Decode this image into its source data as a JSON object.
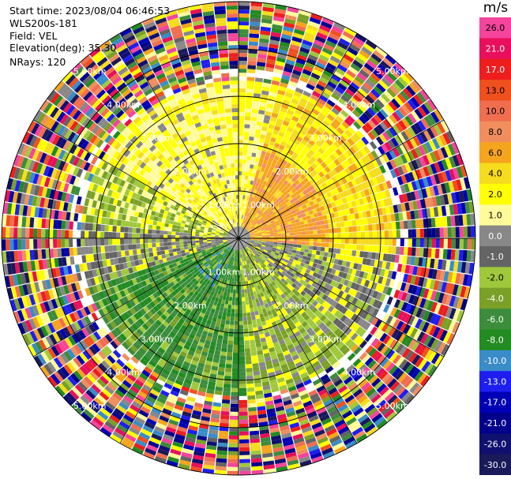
{
  "header": {
    "start_time": "Start time: 2023/08/04 06:46:53",
    "instrument": "WLS200s-181",
    "field": "Field: VEL",
    "elevation": "Elevation(deg): 35.30",
    "nrays": "NRays: 120"
  },
  "colorbar": {
    "unit": "m/s",
    "bins": [
      {
        "label": "26.0",
        "color": "#f4449c"
      },
      {
        "label": "21.0",
        "color": "#e8105a"
      },
      {
        "label": "17.0",
        "color": "#ee1e1e"
      },
      {
        "label": "13.0",
        "color": "#f0501e"
      },
      {
        "label": "10.0",
        "color": "#f06e50"
      },
      {
        "label": "8.0",
        "color": "#f08e5e"
      },
      {
        "label": "6.0",
        "color": "#f5a41e"
      },
      {
        "label": "4.0",
        "color": "#f5dc1e"
      },
      {
        "label": "2.0",
        "color": "#ffff00"
      },
      {
        "label": "1.0",
        "color": "#fffa9a"
      },
      {
        "label": "0.0",
        "color": "#888888"
      },
      {
        "label": "-1.0",
        "color": "#646464"
      },
      {
        "label": "-2.0",
        "color": "#a0c83c"
      },
      {
        "label": "-4.0",
        "color": "#7aa028"
      },
      {
        "label": "-6.0",
        "color": "#3c8c3c"
      },
      {
        "label": "-8.0",
        "color": "#228b22"
      },
      {
        "label": "-10.0",
        "color": "#3a8cc8"
      },
      {
        "label": "-13.0",
        "color": "#1e1ef0"
      },
      {
        "label": "-17.0",
        "color": "#0000b4"
      },
      {
        "label": "-21.0",
        "color": "#00008c"
      },
      {
        "label": "-26.0",
        "color": "#101070"
      },
      {
        "label": "-30.0",
        "color": "#1a1a5a"
      }
    ]
  },
  "chart_data": {
    "type": "heatmap",
    "projection": "polar PPI",
    "field": "VEL",
    "units": "m/s",
    "nrays": 120,
    "range_rings": [
      {
        "label": "1.00km"
      },
      {
        "label": "2.00km"
      },
      {
        "label": "3.00km"
      },
      {
        "label": "4.00km"
      },
      {
        "label": "5.00km"
      }
    ],
    "sectors": [
      {
        "name": "north-east",
        "dominant_value_range": [
          2,
          8
        ]
      },
      {
        "name": "south-west",
        "dominant_value_range": [
          -10,
          -2
        ]
      },
      {
        "name": "outer-ring",
        "dominant_value_range": [
          -30,
          26
        ]
      }
    ]
  }
}
